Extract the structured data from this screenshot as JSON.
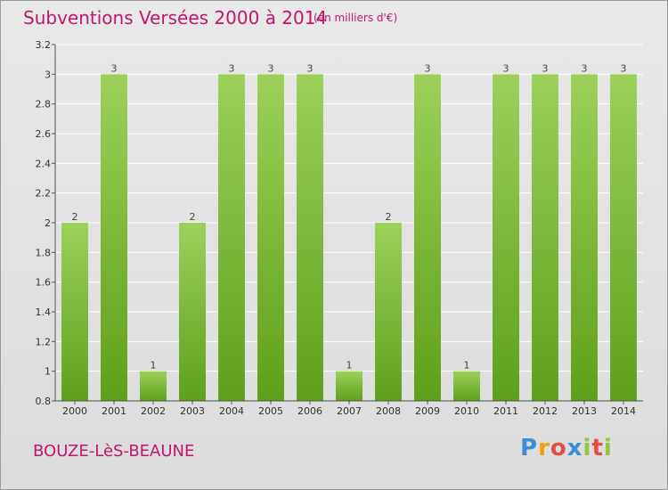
{
  "header": {
    "title": "Subventions Versées 2000 à 2014",
    "subtitle": "(en milliers d'€)"
  },
  "footer": {
    "commune": "BOUZE-LèS-BEAUNE",
    "logo": "Proxiti",
    "logo_colors": [
      "#3a8fd6",
      "#f39c12",
      "#e74c3c",
      "#3a8fd6",
      "#8dc63f",
      "#e74c3c",
      "#8dc63f"
    ]
  },
  "colors": {
    "title": "#c0176e",
    "bar_light": "#9dd05a",
    "bar_dark": "#5e9f1a",
    "grid": "#ffffff",
    "axis": "#555555"
  },
  "chart_data": {
    "type": "bar",
    "title": "Subventions Versées 2000 à 2014",
    "subtitle": "(en milliers d'€)",
    "categories": [
      "2000",
      "2001",
      "2002",
      "2003",
      "2004",
      "2005",
      "2006",
      "2007",
      "2008",
      "2009",
      "2010",
      "2011",
      "2012",
      "2013",
      "2014"
    ],
    "values": [
      2,
      3,
      1,
      2,
      3,
      3,
      3,
      1,
      2,
      3,
      1,
      3,
      3,
      3,
      3
    ],
    "data_labels": [
      "2",
      "3",
      "1",
      "2",
      "3",
      "3",
      "3",
      "1",
      "2",
      "3",
      "1",
      "3",
      "3",
      "3",
      "3"
    ],
    "ylim": [
      0.8,
      3.2
    ],
    "yticks": [
      0.8,
      1,
      1.2,
      1.4,
      1.6,
      1.8,
      2,
      2.2,
      2.4,
      2.6,
      2.8,
      3,
      3.2
    ],
    "ytick_labels": [
      "0.8",
      "1",
      "1.2",
      "1.4",
      "1.6",
      "1.8",
      "2",
      "2.2",
      "2.4",
      "2.6",
      "2.8",
      "3",
      "3.2"
    ],
    "xlabel": "",
    "ylabel": "",
    "grid": true
  }
}
